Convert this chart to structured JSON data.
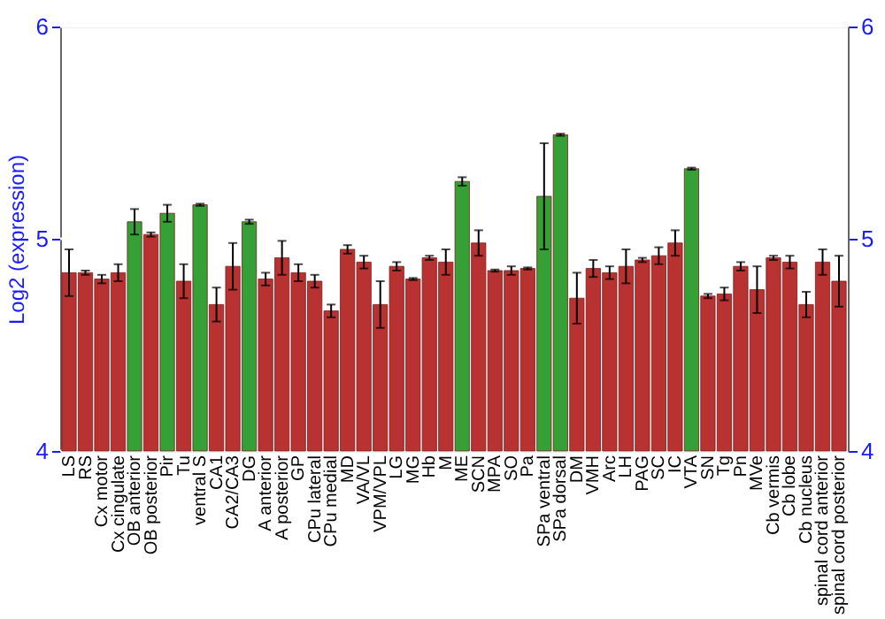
{
  "chart_data": {
    "type": "bar",
    "ylabel": "Log2 (expression)",
    "categories": [
      "LS",
      "RS",
      "Cx motor",
      "Cx cingulate",
      "OB anterior",
      "OB posterior",
      "Pir",
      "Tu",
      "ventral S",
      "CA1",
      "CA2/CA3",
      "DG",
      "A anterior",
      "A posterior",
      "GP",
      "CPu lateral",
      "CPu medial",
      "MD",
      "VA/VL",
      "VPM/VPL",
      "LG",
      "MG",
      "Hb",
      "M",
      "ME",
      "SCN",
      "MPA",
      "SO",
      "Pa",
      "SPa ventral",
      "SPa dorsal",
      "DM",
      "VMH",
      "Arc",
      "LH",
      "PAG",
      "SC",
      "IC",
      "VTA",
      "SN",
      "Tg",
      "Pn",
      "MVe",
      "Cb vermis",
      "Cb lobe",
      "Cb nucleus",
      "spinal cord anterior",
      "spinal cord posterior"
    ],
    "values": [
      4.84,
      4.84,
      4.81,
      4.84,
      5.08,
      5.02,
      5.12,
      4.8,
      5.16,
      4.69,
      4.87,
      5.08,
      4.81,
      4.91,
      4.84,
      4.8,
      4.66,
      4.95,
      4.89,
      4.69,
      4.87,
      4.81,
      4.91,
      4.89,
      5.27,
      4.98,
      4.85,
      4.85,
      4.86,
      5.2,
      5.49,
      4.72,
      4.86,
      4.84,
      4.87,
      4.9,
      4.92,
      4.98,
      5.33,
      4.73,
      4.74,
      4.87,
      4.76,
      4.91,
      4.89,
      4.69,
      4.89,
      4.8
    ],
    "errors": [
      0.11,
      0.01,
      0.02,
      0.04,
      0.06,
      0.01,
      0.04,
      0.08,
      0.005,
      0.08,
      0.11,
      0.01,
      0.03,
      0.08,
      0.04,
      0.03,
      0.03,
      0.02,
      0.03,
      0.11,
      0.02,
      0.005,
      0.01,
      0.06,
      0.02,
      0.06,
      0.005,
      0.02,
      0.005,
      0.25,
      0.005,
      0.12,
      0.04,
      0.03,
      0.08,
      0.01,
      0.04,
      0.06,
      0.005,
      0.01,
      0.03,
      0.02,
      0.11,
      0.01,
      0.03,
      0.06,
      0.06,
      0.12
    ],
    "colors": [
      "#b83232",
      "#b83232",
      "#b83232",
      "#b83232",
      "#35a035",
      "#b83232",
      "#35a035",
      "#b83232",
      "#35a035",
      "#b83232",
      "#b83232",
      "#35a035",
      "#b83232",
      "#b83232",
      "#b83232",
      "#b83232",
      "#b83232",
      "#b83232",
      "#b83232",
      "#b83232",
      "#b83232",
      "#b83232",
      "#b83232",
      "#b83232",
      "#35a035",
      "#b83232",
      "#b83232",
      "#b83232",
      "#b83232",
      "#35a035",
      "#35a035",
      "#b83232",
      "#b83232",
      "#b83232",
      "#b83232",
      "#b83232",
      "#b83232",
      "#b83232",
      "#35a035",
      "#b83232",
      "#b83232",
      "#b83232",
      "#b83232",
      "#b83232",
      "#b83232",
      "#b83232",
      "#b83232",
      "#b83232"
    ],
    "ylim": [
      4,
      6
    ],
    "yticks": [
      4,
      5,
      6
    ],
    "y2lim": [
      4,
      6
    ],
    "y2ticks": [
      4,
      5,
      6
    ],
    "grid": "y"
  }
}
